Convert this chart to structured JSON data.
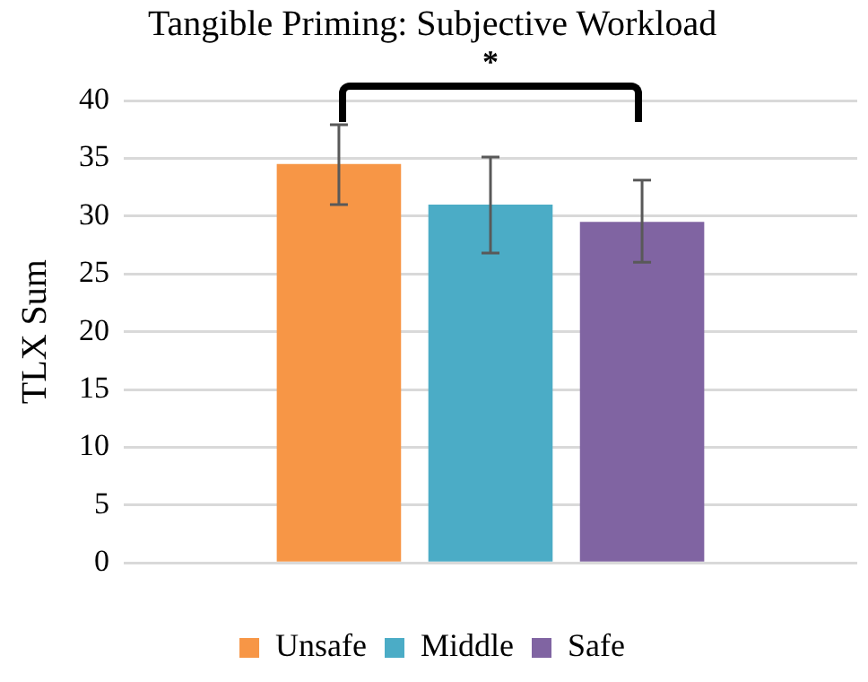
{
  "chart_data": {
    "type": "bar",
    "title": "Tangible Priming: Subjective Workload",
    "ylabel": "TLX Sum",
    "categories": [
      null
    ],
    "series": [
      {
        "name": "Unsafe",
        "color": "#f79646",
        "values": [
          34.5
        ],
        "errors": [
          [
            31.0,
            37.9
          ]
        ]
      },
      {
        "name": "Middle",
        "color": "#4bacc6",
        "values": [
          31.0
        ],
        "errors": [
          [
            26.8,
            35.1
          ]
        ]
      },
      {
        "name": "Safe",
        "color": "#8064a2",
        "values": [
          29.5
        ],
        "errors": [
          [
            26.0,
            33.1
          ]
        ]
      }
    ],
    "ylim": [
      0,
      40
    ],
    "yticks": [
      0,
      5,
      10,
      15,
      20,
      25,
      30,
      35,
      40
    ],
    "grid": "y",
    "legend": "bottom",
    "annotations": [
      "*"
    ]
  }
}
